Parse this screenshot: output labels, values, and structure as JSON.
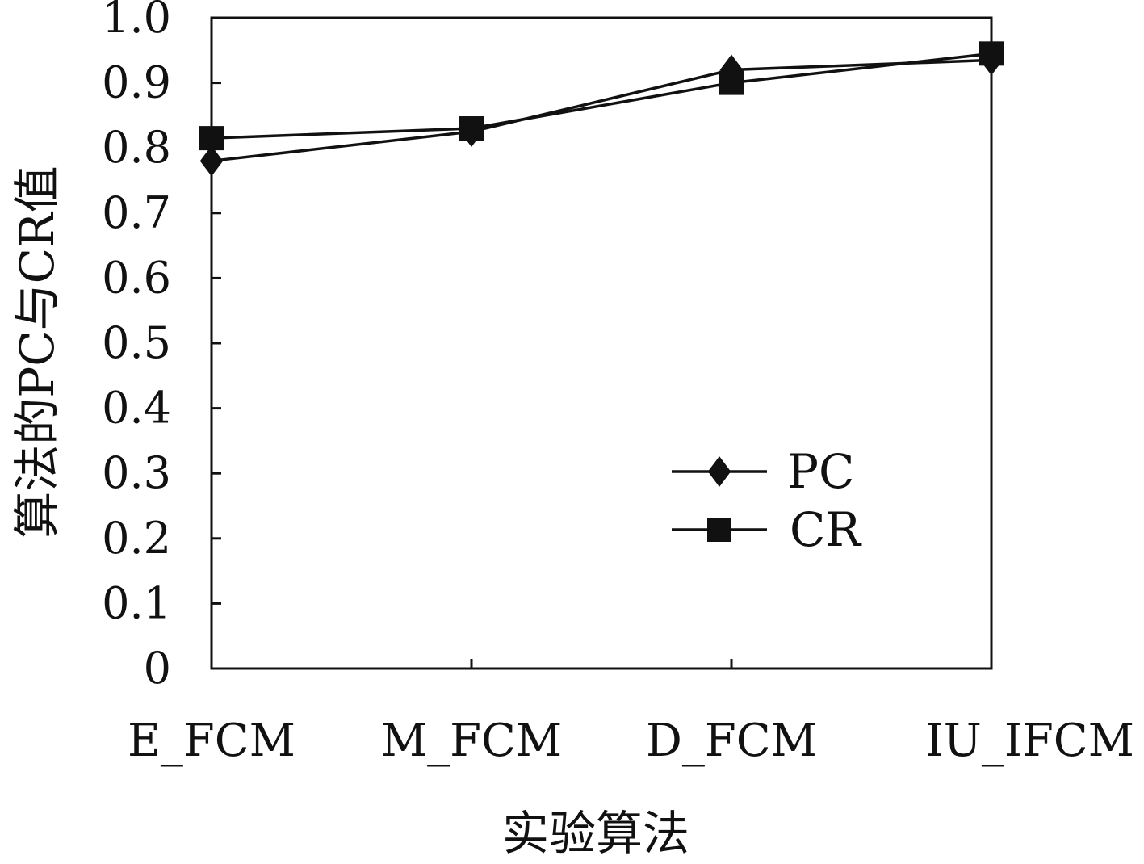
{
  "chart_data": {
    "type": "line",
    "categories": [
      "E_FCM",
      "M_FCM",
      "D_FCM",
      "IU_IFCM"
    ],
    "series": [
      {
        "name": "PC",
        "marker": "diamond",
        "values": [
          0.78,
          0.825,
          0.92,
          0.935
        ]
      },
      {
        "name": "CR",
        "marker": "square",
        "values": [
          0.815,
          0.83,
          0.9,
          0.945
        ]
      }
    ],
    "xlabel": "实验算法",
    "ylabel": "算法的PC与CR值",
    "ylim": [
      0,
      1.0
    ],
    "yticks": [
      "0",
      "0.1",
      "0.2",
      "0.3",
      "0.4",
      "0.5",
      "0.6",
      "0.7",
      "0.8",
      "0.9",
      "1.0"
    ],
    "grid": false,
    "legend": "lower-right",
    "line_color": "#111111"
  }
}
